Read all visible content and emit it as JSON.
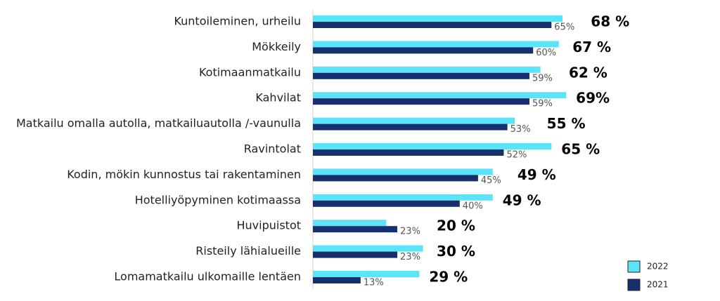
{
  "chart_data": {
    "type": "bar",
    "orientation": "horizontal",
    "categories": [
      "Kuntoileminen, urheilu",
      "Mökkeily",
      "Kotimaanmatkailu",
      "Kahvilat",
      "Matkailu omalla autolla, matkailuautolla /-vaunulla",
      "Ravintolat",
      "Kodin, mökin kunnostus tai rakentaminen",
      "Hotelliyöpyminen kotimaassa",
      "Huvipuistot",
      "Risteily lähialueille",
      "Lomamatkailu ulkomaille lentäen"
    ],
    "series": [
      {
        "name": "2022",
        "color": "#5be3f7",
        "values": [
          68,
          67,
          62,
          69,
          55,
          65,
          49,
          49,
          20,
          30,
          29
        ],
        "value_labels": [
          "68 %",
          "67 %",
          "62 %",
          "69%",
          "55 %",
          "65 %",
          "49 %",
          "49 %",
          "20 %",
          "30 %",
          "29 %"
        ]
      },
      {
        "name": "2021",
        "color": "#172f6e",
        "values": [
          65,
          60,
          59,
          59,
          53,
          52,
          45,
          40,
          23,
          23,
          13
        ],
        "value_labels": [
          "65%",
          "60%",
          "59%",
          "59%",
          "53%",
          "52%",
          "45%",
          "40%",
          "23%",
          "23%",
          "13%"
        ]
      }
    ]
  }
}
